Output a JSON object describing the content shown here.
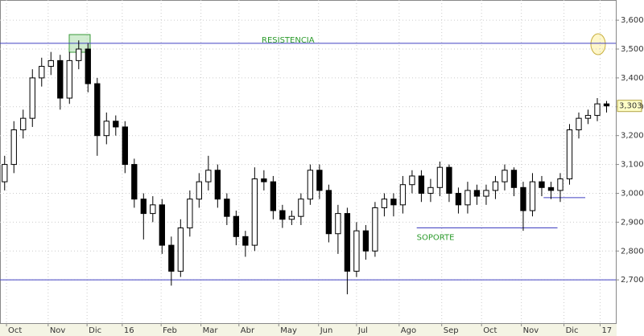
{
  "chart_data": {
    "type": "candlestick",
    "x": [
      0.5,
      1.5,
      2.5,
      3.5,
      4.5,
      5.5,
      6.5,
      7.5,
      8.5,
      9.5,
      10.5,
      11.5,
      12.5,
      13.5,
      14.5,
      15.5,
      16.5,
      17.5,
      18.5,
      19.5,
      20.5,
      21.5,
      22.5,
      23.5,
      24.5,
      25.5,
      26.5,
      27.5,
      28.5,
      29.5,
      30.5,
      31.5,
      32.5,
      33.5,
      34.5,
      35.5,
      36.5,
      37.5,
      38.5,
      39.5,
      40.5,
      41.5,
      42.5,
      43.5,
      44.5,
      45.5,
      46.5,
      47.5,
      48.5,
      49.5,
      50.5,
      51.5,
      52.5,
      53.5,
      54.5,
      55.5,
      56.5,
      57.5,
      58.5,
      59.5,
      60.5,
      61.5,
      62.5,
      63.5,
      64.5,
      65.5
    ],
    "open": [
      3040,
      3100,
      3220,
      3260,
      3400,
      3440,
      3460,
      3330,
      3460,
      3500,
      3380,
      3200,
      3250,
      3230,
      3100,
      2980,
      2930,
      2960,
      2820,
      2730,
      2880,
      2980,
      3040,
      3080,
      2980,
      2920,
      2850,
      2820,
      3050,
      3040,
      2940,
      2910,
      2920,
      2980,
      3080,
      3010,
      2860,
      2930,
      2730,
      2870,
      2800,
      2950,
      2980,
      2960,
      3030,
      3060,
      3000,
      3020,
      3090,
      3000,
      2960,
      3010,
      2990,
      3010,
      3040,
      3080,
      3020,
      2940,
      3040,
      3020,
      3010,
      3050,
      3220,
      3260,
      3270,
      3310
    ],
    "high": [
      3130,
      3250,
      3290,
      3430,
      3470,
      3490,
      3480,
      3490,
      3530,
      3520,
      3400,
      3280,
      3270,
      3250,
      3120,
      3000,
      2990,
      2980,
      2850,
      2910,
      3010,
      3070,
      3130,
      3100,
      3000,
      2940,
      2870,
      3090,
      3080,
      3060,
      2960,
      2940,
      3000,
      3100,
      3100,
      3030,
      2960,
      2950,
      2900,
      2890,
      2970,
      3000,
      3000,
      3060,
      3080,
      3080,
      3050,
      3110,
      3100,
      3020,
      3040,
      3030,
      3030,
      3060,
      3100,
      3090,
      3040,
      3070,
      3060,
      3040,
      3070,
      3240,
      3280,
      3290,
      3330,
      3320
    ],
    "low": [
      3010,
      3070,
      3190,
      3230,
      3370,
      3410,
      3290,
      3310,
      3430,
      3350,
      3130,
      3170,
      3200,
      3070,
      2950,
      2840,
      2900,
      2790,
      2680,
      2710,
      2850,
      2950,
      3010,
      2950,
      2890,
      2820,
      2780,
      2800,
      3010,
      2910,
      2880,
      2890,
      2890,
      2960,
      2980,
      2830,
      2790,
      2650,
      2710,
      2770,
      2780,
      2920,
      2920,
      2930,
      3000,
      2970,
      2970,
      2990,
      2970,
      2930,
      2930,
      2960,
      2960,
      2980,
      3010,
      2990,
      2870,
      2920,
      2990,
      2980,
      2970,
      3030,
      3190,
      3240,
      3250,
      3280
    ],
    "close": [
      3100,
      3220,
      3260,
      3400,
      3440,
      3460,
      3330,
      3460,
      3500,
      3380,
      3200,
      3250,
      3230,
      3100,
      2980,
      2930,
      2960,
      2820,
      2730,
      2880,
      2980,
      3040,
      3080,
      2980,
      2920,
      2850,
      2820,
      3050,
      3040,
      2940,
      2910,
      2920,
      2980,
      3080,
      3010,
      2860,
      2930,
      2730,
      2870,
      2800,
      2950,
      2980,
      2960,
      3030,
      3060,
      3000,
      3020,
      3090,
      3000,
      2960,
      3010,
      2990,
      3010,
      3040,
      3080,
      3020,
      2940,
      3040,
      3020,
      3010,
      3050,
      3220,
      3260,
      3270,
      3310,
      3303
    ],
    "up_color": "#ffffff",
    "down_color": "#000000",
    "xlim": [
      0,
      66.5
    ],
    "xticks": [
      {
        "value": 0.7,
        "label": "Oct"
      },
      {
        "value": 5.2,
        "label": "Nov"
      },
      {
        "value": 9.4,
        "label": "Dic"
      },
      {
        "value": 13.2,
        "label": "16"
      },
      {
        "value": 17.4,
        "label": "Feb"
      },
      {
        "value": 21.7,
        "label": "Mar"
      },
      {
        "value": 25.8,
        "label": "Abr"
      },
      {
        "value": 30.1,
        "label": "May"
      },
      {
        "value": 34.4,
        "label": "Jun"
      },
      {
        "value": 38.5,
        "label": "Jul"
      },
      {
        "value": 43.1,
        "label": "Ago"
      },
      {
        "value": 47.7,
        "label": "Sep"
      },
      {
        "value": 52,
        "label": "Oct"
      },
      {
        "value": 56.3,
        "label": "Nov"
      },
      {
        "value": 60.9,
        "label": "Dic"
      },
      {
        "value": 64.8,
        "label": "17"
      }
    ],
    "ylim": [
      2550,
      3670
    ],
    "yticks": [
      {
        "value": 2700,
        "label": "2,700"
      },
      {
        "value": 2800,
        "label": "2,800"
      },
      {
        "value": 2900,
        "label": "2,900"
      },
      {
        "value": 3000,
        "label": "3,000"
      },
      {
        "value": 3100,
        "label": "3,100"
      },
      {
        "value": 3200,
        "label": "3,200"
      },
      {
        "value": 3300,
        "label": "3,300"
      },
      {
        "value": 3400,
        "label": "3,400"
      },
      {
        "value": 3500,
        "label": "3,500"
      },
      {
        "value": 3600,
        "label": "3,600"
      }
    ],
    "grid": true,
    "hlines": [
      {
        "value": 3520,
        "label": "RESISTENCIA",
        "color": "#4040c0"
      },
      {
        "value": 2700,
        "color": "#4040c0"
      }
    ],
    "segments": [
      {
        "value": 2880,
        "x": [
          45,
          60.2
        ],
        "label": "SOPORTE",
        "color": "#4040c0"
      },
      {
        "value": 2985,
        "x": [
          58.7,
          63.2
        ],
        "color": "#4040c0"
      }
    ],
    "last_price": {
      "value": 3303,
      "label": "3,303"
    }
  }
}
